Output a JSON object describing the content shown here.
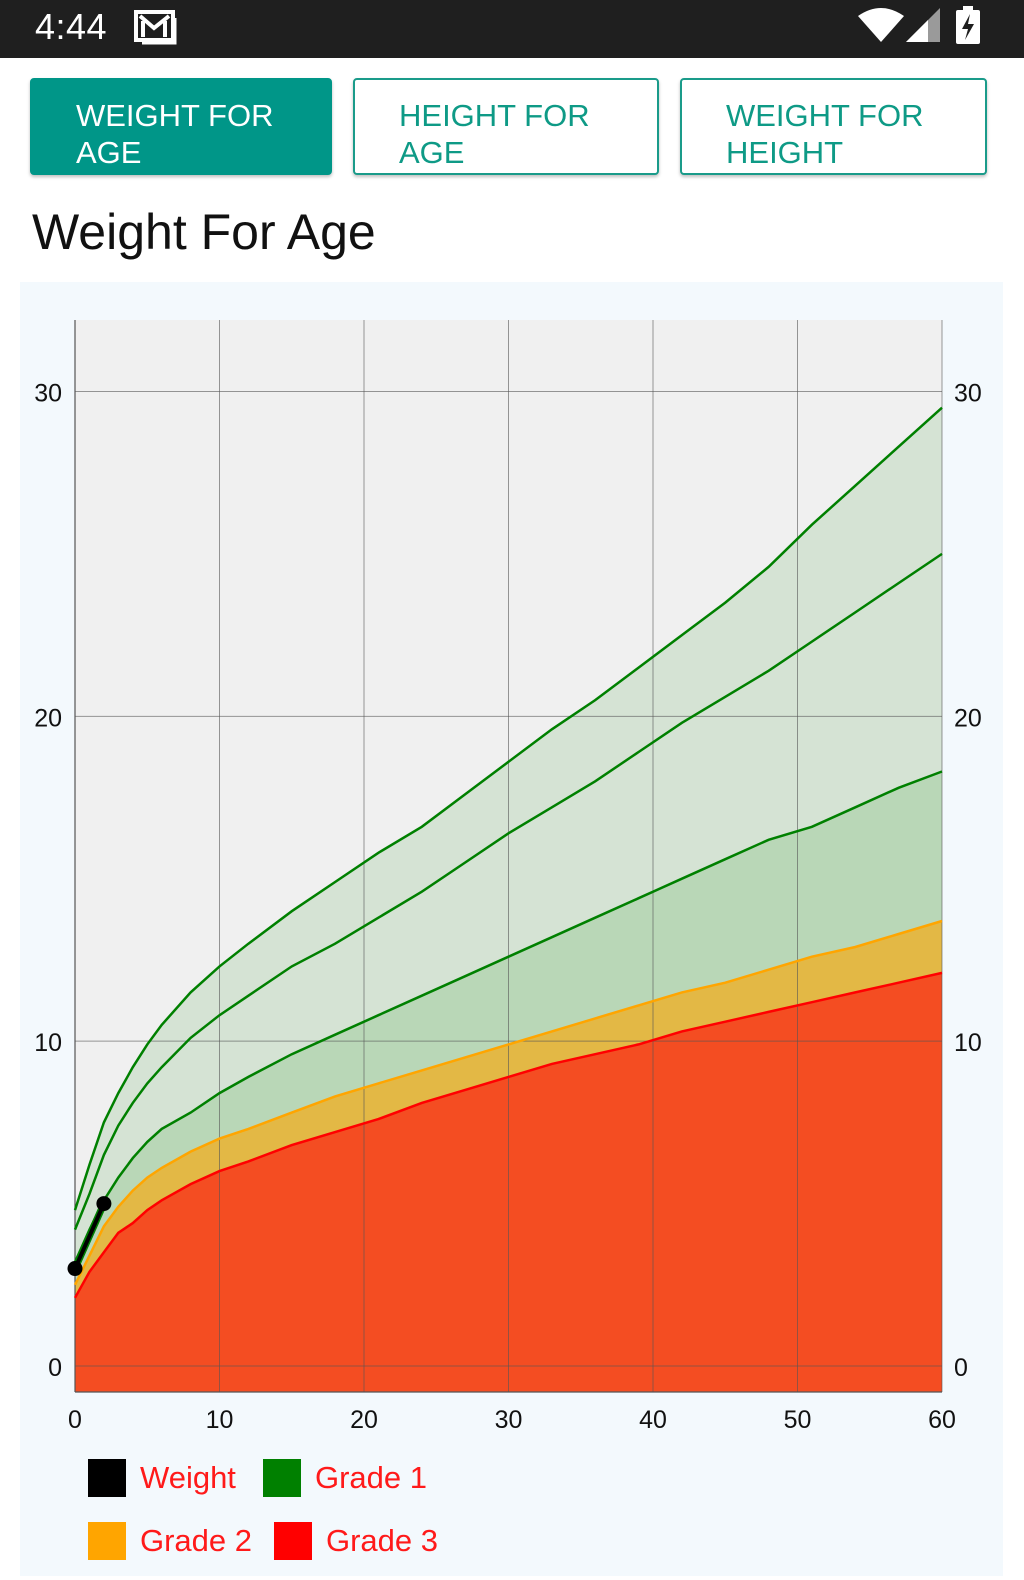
{
  "status_bar": {
    "time": "4:44",
    "icons": [
      "gmail-icon",
      "wifi-icon",
      "signal-icon",
      "battery-charging-icon"
    ]
  },
  "tabs": [
    {
      "label": "WEIGHT FOR\nAGE",
      "active": true
    },
    {
      "label": "HEIGHT FOR\nAGE",
      "active": false
    },
    {
      "label": "WEIGHT FOR\nHEIGHT",
      "active": false
    }
  ],
  "page_title": "Weight For Age",
  "colors": {
    "accent": "#009688",
    "weight": "#000000",
    "grade1": "#008000",
    "grade2": "#ffa500",
    "grade3": "#ff0000"
  },
  "legend": [
    {
      "label": "Weight",
      "color": "#000000"
    },
    {
      "label": "Grade 1",
      "color": "#008000"
    },
    {
      "label": "Grade 2",
      "color": "#ffa500"
    },
    {
      "label": "Grade 3",
      "color": "#ff0000"
    }
  ],
  "chart_data": {
    "type": "area",
    "x_ticks": [
      "0",
      "10",
      "20",
      "30",
      "40",
      "50",
      "60"
    ],
    "y_ticks": [
      "0",
      "10",
      "20",
      "30"
    ],
    "xlim": [
      0,
      60
    ],
    "ylim": [
      -0.8,
      32.2
    ],
    "grid": true,
    "legend_position": "bottom",
    "x": [
      0,
      1,
      2,
      3,
      4,
      5,
      6,
      8,
      10,
      12,
      15,
      18,
      21,
      24,
      27,
      30,
      33,
      36,
      39,
      42,
      45,
      48,
      51,
      54,
      57,
      60
    ],
    "series": [
      {
        "name": "Grade 3",
        "values": [
          2.1,
          2.9,
          3.5,
          4.1,
          4.4,
          4.8,
          5.1,
          5.6,
          6.0,
          6.3,
          6.8,
          7.2,
          7.6,
          8.1,
          8.5,
          8.9,
          9.3,
          9.6,
          9.9,
          10.3,
          10.6,
          10.9,
          11.2,
          11.5,
          11.8,
          12.1
        ]
      },
      {
        "name": "Grade 2",
        "values": [
          2.5,
          3.4,
          4.3,
          4.9,
          5.4,
          5.8,
          6.1,
          6.6,
          7.0,
          7.3,
          7.8,
          8.3,
          8.7,
          9.1,
          9.5,
          9.9,
          10.3,
          10.7,
          11.1,
          11.5,
          11.8,
          12.2,
          12.6,
          12.9,
          13.3,
          13.7
        ]
      },
      {
        "name": "",
        "values": [
          3.2,
          4.2,
          5.1,
          5.8,
          6.4,
          6.9,
          7.3,
          7.8,
          8.4,
          8.9,
          9.6,
          10.2,
          10.8,
          11.4,
          12.0,
          12.6,
          13.2,
          13.8,
          14.4,
          15.0,
          15.6,
          16.2,
          16.6,
          17.2,
          17.8,
          18.3
        ]
      },
      {
        "name": "",
        "values": [
          4.2,
          5.3,
          6.5,
          7.4,
          8.1,
          8.7,
          9.2,
          10.1,
          10.8,
          11.4,
          12.3,
          13.0,
          13.8,
          14.6,
          15.5,
          16.4,
          17.2,
          18.0,
          18.9,
          19.8,
          20.6,
          21.4,
          22.3,
          23.2,
          24.1,
          25.0
        ]
      },
      {
        "name": "",
        "values": [
          4.8,
          6.2,
          7.5,
          8.4,
          9.2,
          9.9,
          10.5,
          11.5,
          12.3,
          13.0,
          14.0,
          14.9,
          15.8,
          16.6,
          17.6,
          18.6,
          19.6,
          20.5,
          21.5,
          22.5,
          23.5,
          24.6,
          25.9,
          27.1,
          28.3,
          29.5
        ]
      }
    ],
    "weight": {
      "name": "Weight",
      "x": [
        0,
        2
      ],
      "y": [
        3.0,
        5.0
      ]
    }
  }
}
